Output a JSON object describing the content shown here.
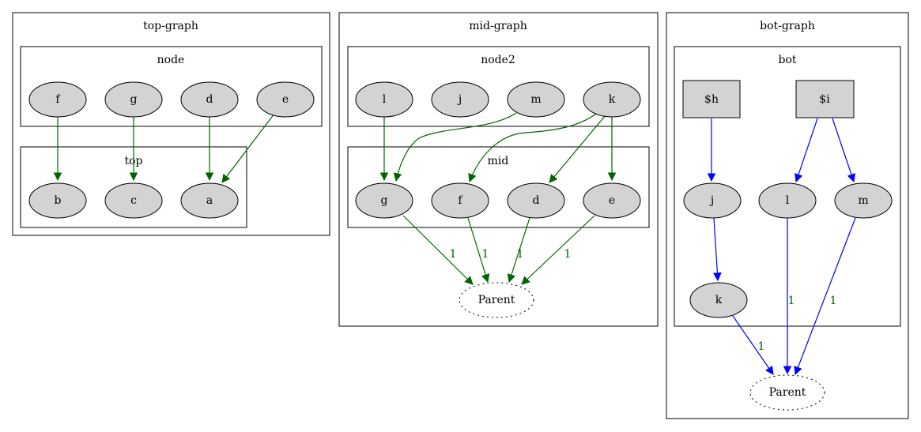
{
  "colors": {
    "green_edge": "#006400",
    "blue_edge": "#0000ff",
    "node_fill": "#d3d3d3"
  },
  "clusters": {
    "top_graph": "top-graph",
    "node": "node",
    "top": "top",
    "mid_graph": "mid-graph",
    "node2": "node2",
    "mid": "mid",
    "bot_graph": "bot-graph",
    "bot": "bot"
  },
  "nodes": {
    "tg_f": "f",
    "tg_g": "g",
    "tg_d": "d",
    "tg_e": "e",
    "tg_b": "b",
    "tg_c": "c",
    "tg_a": "a",
    "mg_l": "l",
    "mg_j": "j",
    "mg_m": "m",
    "mg_k": "k",
    "mg_g": "g",
    "mg_f": "f",
    "mg_d": "d",
    "mg_e": "e",
    "mg_parent": "Parent",
    "bg_h": "$h",
    "bg_i": "$i",
    "bg_j": "j",
    "bg_l": "l",
    "bg_m": "m",
    "bg_k": "k",
    "bg_parent": "Parent"
  },
  "edge_labels": {
    "mg_g_parent": "1",
    "mg_f_parent": "1",
    "mg_d_parent": "1",
    "mg_e_parent": "1",
    "bg_l_parent": "1",
    "bg_m_parent": "1",
    "bg_k_parent": "1"
  }
}
